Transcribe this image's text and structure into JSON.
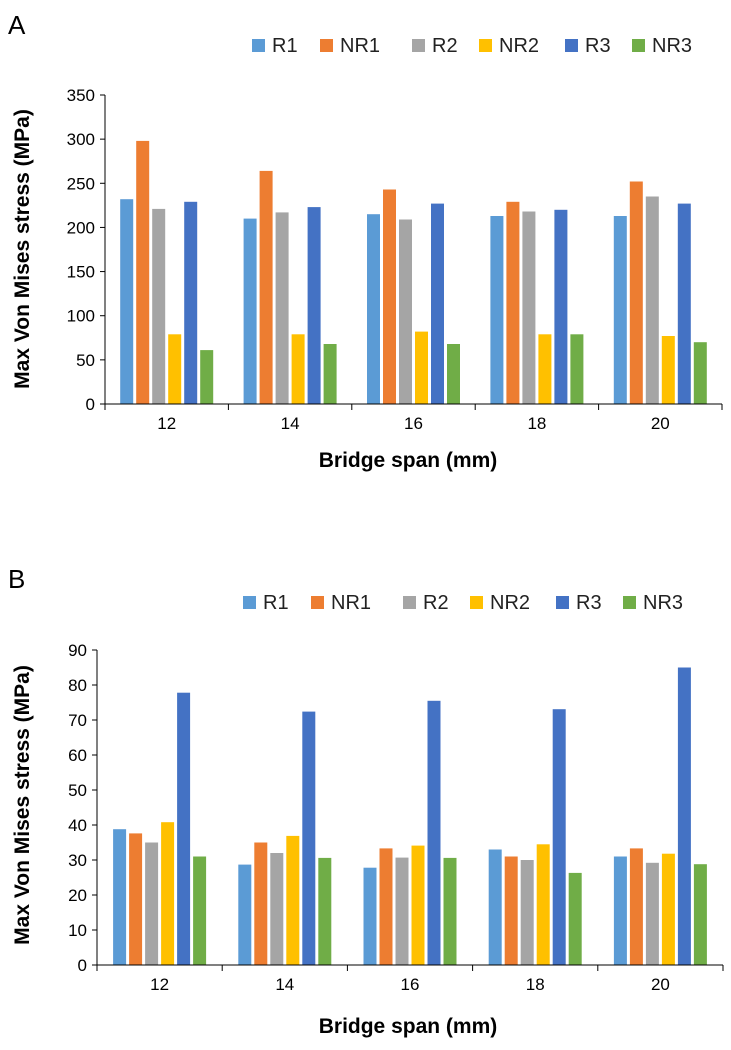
{
  "chart_data": [
    {
      "type": "bar",
      "panel_label": "A",
      "title": "",
      "xlabel": "Bridge span (mm)",
      "ylabel": "Max Von Mises stress (MPa)",
      "categories": [
        "12",
        "14",
        "16",
        "18",
        "20"
      ],
      "ylim": [
        0,
        350
      ],
      "yticks": [
        "0",
        "50",
        "100",
        "150",
        "200",
        "250",
        "300",
        "350"
      ],
      "ytick_values": [
        0,
        50,
        100,
        150,
        200,
        250,
        300,
        350
      ],
      "grid": false,
      "legend_position": "top-right",
      "series": [
        {
          "name": "R1",
          "color": "#5B9BD5",
          "values": [
            232,
            210,
            215,
            213,
            213
          ]
        },
        {
          "name": "NR1",
          "color": "#ED7D31",
          "values": [
            298,
            264,
            243,
            229,
            252
          ]
        },
        {
          "name": "R2",
          "color": "#A5A5A5",
          "values": [
            221,
            217,
            209,
            218,
            235
          ]
        },
        {
          "name": "NR2",
          "color": "#FFC000",
          "values": [
            79,
            79,
            82,
            79,
            77
          ]
        },
        {
          "name": "R3",
          "color": "#4472C4",
          "values": [
            229,
            223,
            227,
            220,
            227
          ]
        },
        {
          "name": "NR3",
          "color": "#70AD47",
          "values": [
            61,
            68,
            68,
            79,
            70
          ]
        }
      ]
    },
    {
      "type": "bar",
      "panel_label": "B",
      "title": "",
      "xlabel": "Bridge span (mm)",
      "ylabel": "Max Von Mises stress (MPa)",
      "categories": [
        "12",
        "14",
        "16",
        "18",
        "20"
      ],
      "ylim": [
        0,
        90
      ],
      "yticks": [
        "0",
        "10",
        "20",
        "30",
        "40",
        "50",
        "60",
        "70",
        "80",
        "90"
      ],
      "ytick_values": [
        0,
        10,
        20,
        30,
        40,
        50,
        60,
        70,
        80,
        90
      ],
      "grid": false,
      "legend_position": "top-right",
      "series": [
        {
          "name": "R1",
          "color": "#5B9BD5",
          "values": [
            38.8,
            28.7,
            27.8,
            33.0,
            31.0
          ]
        },
        {
          "name": "NR1",
          "color": "#ED7D31",
          "values": [
            37.6,
            35.0,
            33.3,
            31.0,
            33.3
          ]
        },
        {
          "name": "R2",
          "color": "#A5A5A5",
          "values": [
            35.0,
            32.0,
            30.7,
            30.0,
            29.2
          ]
        },
        {
          "name": "NR2",
          "color": "#FFC000",
          "values": [
            40.8,
            36.9,
            34.1,
            34.5,
            31.8
          ]
        },
        {
          "name": "R3",
          "color": "#4472C4",
          "values": [
            77.8,
            72.4,
            75.5,
            73.1,
            85.0
          ]
        },
        {
          "name": "NR3",
          "color": "#70AD47",
          "values": [
            31.0,
            30.6,
            30.6,
            26.3,
            28.8
          ]
        }
      ]
    }
  ]
}
